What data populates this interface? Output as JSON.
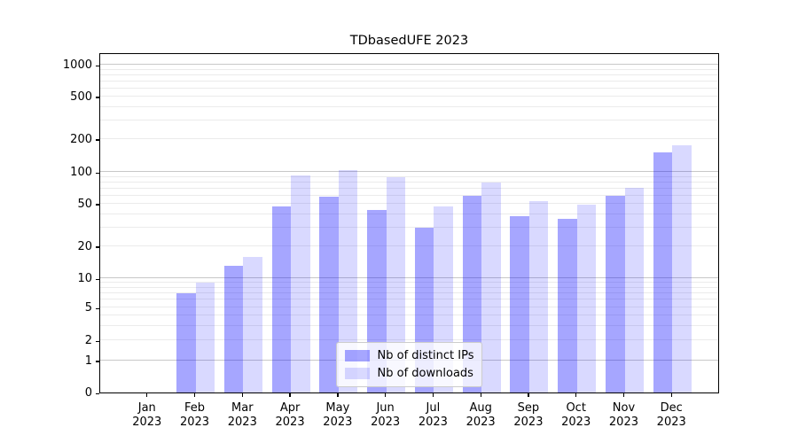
{
  "title": "TDbasedUFE 2023",
  "colors": {
    "ips_bar": "rgba(0,0,255,0.35)",
    "downloads_bar": "rgba(0,0,255,0.15)",
    "grid_major": "#c8c8c8",
    "grid_minor": "#ebebeb",
    "axis": "#000000",
    "legend_border": "#cccccc",
    "legend_background": "rgba(255,255,255,0.8)"
  },
  "legend": {
    "items": [
      {
        "label": "Nb of distinct IPs",
        "series": "ips"
      },
      {
        "label": "Nb of downloads",
        "series": "downloads"
      }
    ]
  },
  "x_axis": {
    "months": [
      "Jan",
      "Feb",
      "Mar",
      "Apr",
      "May",
      "Jun",
      "Jul",
      "Aug",
      "Sep",
      "Oct",
      "Nov",
      "Dec"
    ],
    "year": "2023"
  },
  "y_axis": {
    "tick_labels": [
      "0",
      "1",
      "2",
      "5",
      "10",
      "20",
      "50",
      "100",
      "200",
      "500",
      "1000"
    ]
  },
  "chart_data": {
    "type": "bar",
    "title": "TDbasedUFE 2023",
    "categories": [
      "Jan 2023",
      "Feb 2023",
      "Mar 2023",
      "Apr 2023",
      "May 2023",
      "Jun 2023",
      "Jul 2023",
      "Aug 2023",
      "Sep 2023",
      "Oct 2023",
      "Nov 2023",
      "Dec 2023"
    ],
    "series": [
      {
        "name": "Nb of distinct IPs",
        "values": [
          0,
          7,
          13,
          47,
          58,
          44,
          30,
          59,
          38,
          36,
          60,
          150
        ]
      },
      {
        "name": "Nb of downloads",
        "values": [
          0,
          9,
          16,
          92,
          103,
          90,
          47,
          79,
          53,
          49,
          71,
          174
        ]
      }
    ],
    "xlabel": "",
    "ylabel": "",
    "grid": "on",
    "legend_position": "lower center",
    "y_scale": {
      "type": "symlog-custom",
      "ticks": [
        0,
        1,
        2,
        5,
        10,
        20,
        50,
        100,
        200,
        500,
        1000
      ],
      "fracs": [
        0,
        0.0938,
        0.1536,
        0.25,
        0.3359,
        0.4297,
        0.5547,
        0.6484,
        0.7448,
        0.8698,
        0.9635
      ],
      "minor_gridlines": [
        3,
        4,
        6,
        7,
        8,
        9,
        30,
        40,
        60,
        70,
        80,
        90,
        300,
        400,
        600,
        700,
        800,
        900
      ]
    }
  }
}
